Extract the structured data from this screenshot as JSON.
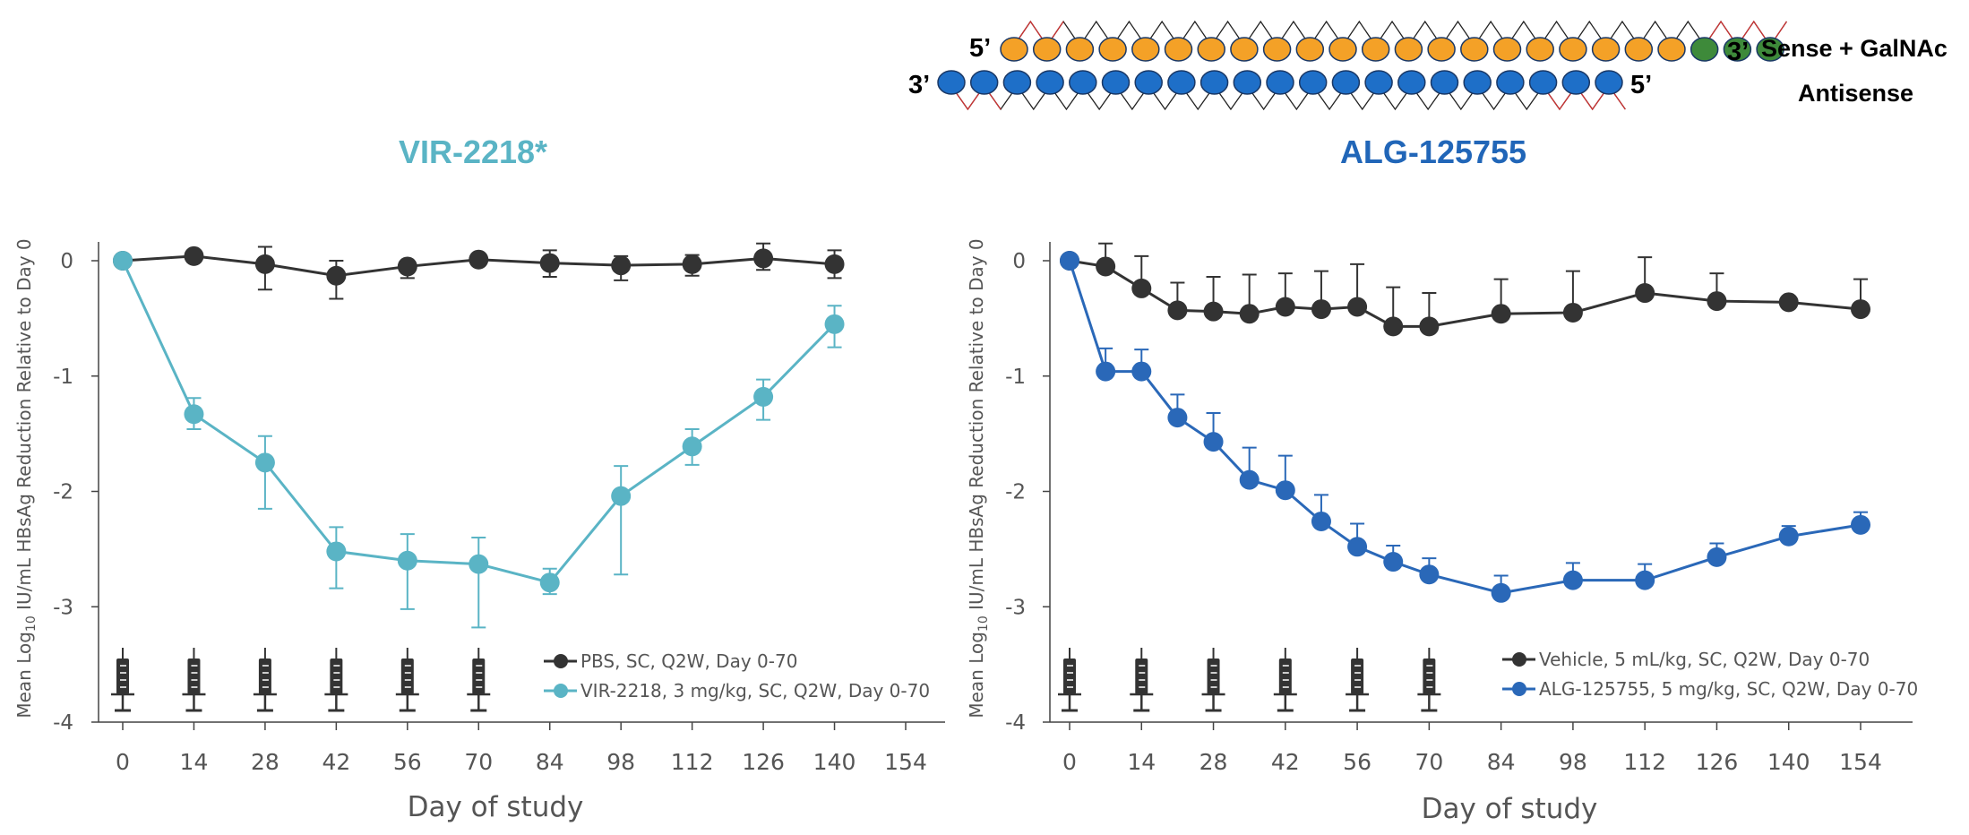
{
  "diagram": {
    "sense_5prime": "5’",
    "sense_3prime": "3’",
    "sense_label": "Sense + GalNAc",
    "antisense_3prime": "3’",
    "antisense_5prime": "5’",
    "antisense_label": "Antisense",
    "sense_count": 21,
    "galnac_count": 3,
    "antisense_count": 21,
    "colors": {
      "sense": "#f4a127",
      "galnac": "#3e8a3a",
      "antisense": "#1e6fc8",
      "outline": "#1a3866",
      "zigzag": "#222222",
      "zigzag_mod": "#cc3333"
    }
  },
  "chart_data": [
    {
      "type": "line",
      "title": "VIR-2218*",
      "title_color": "#5ab4c5",
      "xlabel": "Day of study",
      "ylabel_pre": "Mean Log",
      "ylabel_sub": "10",
      "ylabel_post": " IU/mL HBsAg Reduction Relative to Day 0",
      "xlim": [
        0,
        154
      ],
      "ylim": [
        -4,
        0.15
      ],
      "xticks": [
        0,
        14,
        28,
        42,
        56,
        70,
        84,
        98,
        112,
        126,
        140,
        154
      ],
      "yticks": [
        0,
        -1,
        -2,
        -3,
        -4
      ],
      "ytick_labels": [
        "0",
        "-1",
        "-2",
        "-3",
        "-4"
      ],
      "dosing_days": [
        0,
        14,
        28,
        42,
        56,
        70
      ],
      "series": [
        {
          "name": "PBS, SC, Q2W, Day 0-70",
          "color": "#333333",
          "x": [
            0,
            14,
            28,
            42,
            56,
            70,
            84,
            98,
            112,
            126,
            140
          ],
          "y": [
            0,
            0.04,
            -0.03,
            -0.13,
            -0.05,
            0.01,
            -0.02,
            -0.04,
            -0.03,
            0.02,
            -0.03
          ],
          "err_up": [
            0,
            0,
            0.15,
            0.13,
            0,
            0,
            0.11,
            0.08,
            0.08,
            0.13,
            0.12
          ],
          "err_down": [
            0,
            0,
            0.22,
            0.2,
            0.1,
            0,
            0.12,
            0.13,
            0.1,
            0.1,
            0.12
          ]
        },
        {
          "name": "VIR-2218, 3 mg/kg,  SC, Q2W, Day 0-70",
          "color": "#5ab4c5",
          "x": [
            0,
            14,
            28,
            42,
            56,
            70,
            84,
            98,
            112,
            126,
            140
          ],
          "y": [
            0,
            -1.33,
            -1.75,
            -2.52,
            -2.6,
            -2.63,
            -2.79,
            -2.04,
            -1.61,
            -1.18,
            -0.55
          ],
          "err_up": [
            0,
            0.14,
            0.23,
            0.21,
            0.23,
            0.23,
            0.12,
            0.26,
            0.15,
            0.15,
            0.16
          ],
          "err_down": [
            0,
            0.13,
            0.4,
            0.32,
            0.42,
            0.55,
            0.1,
            0.68,
            0.16,
            0.2,
            0.2
          ]
        }
      ]
    },
    {
      "type": "line",
      "title": "ALG-125755",
      "title_color": "#2166b8",
      "xlabel": "Day of study",
      "ylabel_pre": "Mean Log",
      "ylabel_sub": "10",
      "ylabel_post": " IU/mL HBsAg Reduction Relative to Day 0",
      "xlim": [
        0,
        154
      ],
      "ylim": [
        -4,
        0.15
      ],
      "xticks": [
        0,
        14,
        28,
        42,
        56,
        70,
        84,
        98,
        112,
        126,
        140,
        154
      ],
      "yticks": [
        0,
        -1,
        -2,
        -3,
        -4
      ],
      "ytick_labels": [
        "0",
        "-1",
        "-2",
        "-3",
        "-4"
      ],
      "dosing_days": [
        0,
        14,
        28,
        42,
        56,
        70
      ],
      "series": [
        {
          "name": "Vehicle, 5 mL/kg, SC, Q2W, Day 0-70",
          "color": "#333333",
          "x": [
            0,
            7,
            14,
            21,
            28,
            35,
            42,
            49,
            56,
            63,
            70,
            84,
            98,
            112,
            126,
            140,
            154
          ],
          "y": [
            0,
            -0.05,
            -0.24,
            -0.43,
            -0.44,
            -0.46,
            -0.4,
            -0.42,
            -0.4,
            -0.57,
            -0.57,
            -0.46,
            -0.45,
            -0.28,
            -0.35,
            -0.36,
            -0.42
          ],
          "err_up": [
            0,
            0.2,
            0.28,
            0.24,
            0.3,
            0.34,
            0.29,
            0.33,
            0.37,
            0.34,
            0.29,
            0.3,
            0.36,
            0.31,
            0.24,
            0,
            0.26
          ],
          "err_down": [
            0,
            0,
            0,
            0,
            0,
            0,
            0,
            0,
            0,
            0,
            0,
            0,
            0,
            0,
            0,
            0,
            0
          ]
        },
        {
          "name": "ALG-125755, 5 mg/kg, SC, Q2W, Day 0-70",
          "color": "#2a68b8",
          "x": [
            0,
            7,
            14,
            21,
            28,
            35,
            42,
            49,
            56,
            63,
            70,
            84,
            98,
            112,
            126,
            140,
            154
          ],
          "y": [
            0,
            -0.96,
            -0.96,
            -1.36,
            -1.57,
            -1.9,
            -1.99,
            -2.26,
            -2.48,
            -2.61,
            -2.72,
            -2.88,
            -2.77,
            -2.77,
            -2.57,
            -2.39,
            -2.29
          ],
          "err_up": [
            0,
            0.2,
            0.19,
            0.2,
            0.25,
            0.28,
            0.3,
            0.23,
            0.2,
            0.14,
            0.14,
            0.15,
            0.15,
            0.14,
            0.12,
            0.09,
            0.11
          ],
          "err_down": [
            0,
            0,
            0,
            0,
            0,
            0,
            0,
            0,
            0,
            0,
            0,
            0,
            0,
            0,
            0,
            0,
            0
          ]
        }
      ]
    }
  ]
}
